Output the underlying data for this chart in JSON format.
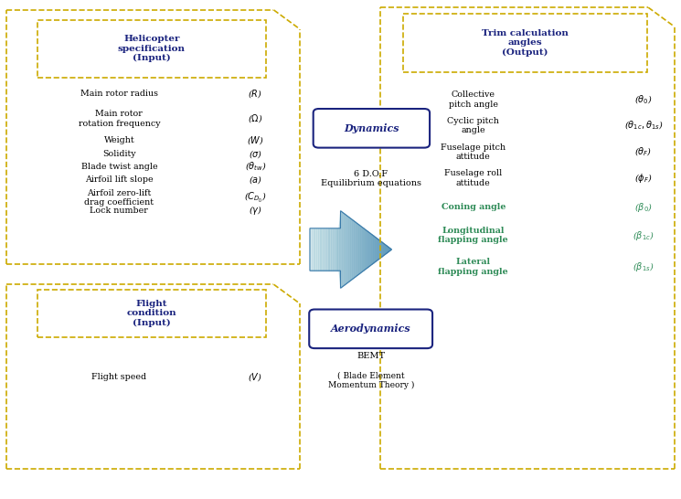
{
  "bg_color": "#ffffff",
  "dashed_border_color": "#ccaa00",
  "dark_blue": "#1a237e",
  "green_color": "#2e8b57",
  "arrow_color": "#4a8aaa",
  "heli_box_title": "Helicopter\nspecification\n(Input)",
  "heli_items": [
    [
      "Main rotor radius",
      "($R$)"
    ],
    [
      "Main rotor\nrotation frequency",
      "($\\Omega$)"
    ],
    [
      "Weight",
      "($W$)"
    ],
    [
      "Solidity",
      "($\\sigma$)"
    ],
    [
      "Blade twist angle",
      "($\\theta_{tw}$)"
    ],
    [
      "Airfoil lift slope",
      "($a$)"
    ],
    [
      "Airfoil zero-lift\ndrag coefficient",
      "($C_{D_0}$)"
    ],
    [
      "Lock number",
      "($\\gamma$)"
    ]
  ],
  "flight_box_title": "Flight\ncondition\n(Input)",
  "flight_items": [
    [
      "Flight speed",
      "($V$)"
    ]
  ],
  "dynamics_label": "Dynamics",
  "dynamics_text": "6 D.O.F\nEquilibrium equations",
  "aero_label": "Aerodynamics",
  "aero_text": "BEMT",
  "bemt_text": "( Blade Element\nMomentum Theory )",
  "trim_box_title": "Trim calculation\nangles\n(Output)",
  "trim_items_black": [
    [
      "Collective\npitch angle",
      "($\\theta_0$)"
    ],
    [
      "Cyclic pitch\nangle",
      "($\\theta_{1c},\\theta_{1s}$)"
    ],
    [
      "Fuselage pitch\nattitude",
      "($\\theta_F$)"
    ],
    [
      "Fuselage roll\nattitude",
      "($\\phi_F$)"
    ]
  ],
  "trim_items_green": [
    [
      "Coning angle",
      "($\\beta_0$)"
    ],
    [
      "Longitudinal\nflapping angle",
      "($\\beta_{1c}$)"
    ],
    [
      "Lateral\nflapping angle",
      "($\\beta_{1s}$)"
    ]
  ]
}
